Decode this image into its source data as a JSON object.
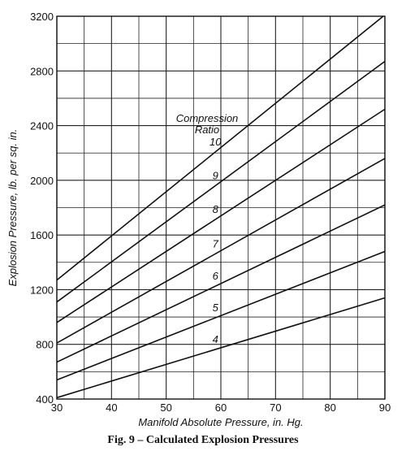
{
  "chart_data": {
    "type": "line",
    "title": "",
    "xlabel": "Manifold Absolute Pressure, in. Hg.",
    "ylabel": "Explosion Pressure, lb. per sq. in.",
    "xlim": [
      30,
      90
    ],
    "ylim": [
      400,
      3200
    ],
    "x_ticks": [
      30,
      40,
      50,
      60,
      70,
      80,
      90
    ],
    "y_ticks": [
      400,
      800,
      1200,
      1600,
      2000,
      2400,
      2800,
      3200
    ],
    "x_minor_step": 5,
    "y_minor_step": 200,
    "grid": true,
    "legend": "none",
    "annotation": [
      "Compression",
      "Ratio"
    ],
    "series": [
      {
        "name": "10",
        "x": [
          30,
          90
        ],
        "y": [
          1270,
          3210
        ]
      },
      {
        "name": "9",
        "x": [
          30,
          90
        ],
        "y": [
          1110,
          2870
        ]
      },
      {
        "name": "8",
        "x": [
          30,
          90
        ],
        "y": [
          960,
          2520
        ]
      },
      {
        "name": "7",
        "x": [
          30,
          90
        ],
        "y": [
          810,
          2160
        ]
      },
      {
        "name": "6",
        "x": [
          30,
          90
        ],
        "y": [
          670,
          1820
        ]
      },
      {
        "name": "5",
        "x": [
          30,
          90
        ],
        "y": [
          540,
          1480
        ]
      },
      {
        "name": "4",
        "x": [
          30,
          90
        ],
        "y": [
          410,
          1140
        ]
      }
    ]
  },
  "caption": "Fig. 9 – Calculated Explosion Pressures"
}
